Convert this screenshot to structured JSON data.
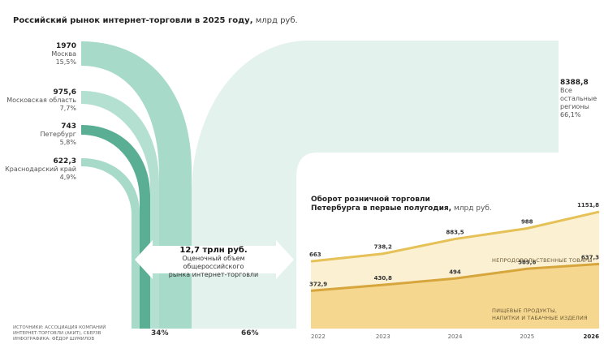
{
  "header": {
    "title": "Российский рынок интернет-торговли в 2025 году,",
    "unit": "млрд руб."
  },
  "regions": [
    {
      "value": "1970",
      "name": "Москва",
      "share": "15,5%"
    },
    {
      "value": "975,6",
      "name": "Московская область",
      "share": "7,7%"
    },
    {
      "value": "743",
      "name": "Петербург",
      "share": "5,8%"
    },
    {
      "value": "622,3",
      "name": "Краснодарский край",
      "share": "4,9%"
    }
  ],
  "other_regions": {
    "value": "8388,8",
    "line1": "Все остальные",
    "line2": "регионы",
    "share": "66,1%"
  },
  "total": {
    "value": "12,7 трлн руб.",
    "line1": "Оценочный объем общероссийского",
    "line2": "рынка интернет-торговли"
  },
  "split": {
    "left": "34%",
    "right": "66%"
  },
  "source": {
    "line1": "ИСТОЧНИКИ: АССОЦИАЦИЯ КОМПАНИЙ",
    "line2": "ИНТЕРНЕТ-ТОРГОВЛИ (АКИТ), СБЕРЗВ",
    "line3": "ИНФОГРАФИКА: ФЁДОР ШУМИЛОВ"
  },
  "colors": {
    "flow_light": "#9fd6c4",
    "flow_dark": "#5aae94",
    "flow_pale": "#e3f2ed",
    "line_top": "#e5c157",
    "line_bottom": "#d6a63c",
    "area_top": "#fbf0d2",
    "area_bottom": "#f6d78f"
  },
  "chart_data": {
    "type": "area",
    "title": "Оборот розничной торговли Петербурга в первые полугодия,",
    "title_line1": "Оборот розничной торговли",
    "title_line2": "Петербурга в первые полугодия,",
    "unit": "млрд руб.",
    "x": [
      "2022",
      "2023",
      "2024",
      "2025",
      "2026"
    ],
    "series": [
      {
        "name_line1": "НЕПРОДОВОЛЬСТВЕННЫЕ ТОВАРЫ",
        "name_line2": "",
        "values": [
          663,
          738.2,
          883.5,
          988,
          1151.8
        ],
        "labels": [
          "663",
          "738,2",
          "883,5",
          "988",
          "1151,8"
        ]
      },
      {
        "name_line1": "ПИЩЕВЫЕ ПРОДУКТЫ,",
        "name_line2": "НАПИТКИ И ТАБАЧНЫЕ ИЗДЕЛИЯ",
        "values": [
          372.9,
          430.8,
          494,
          589.6,
          637.3
        ],
        "labels": [
          "372,9",
          "430,8",
          "494",
          "589,6",
          "637,3"
        ]
      }
    ],
    "ylim": [
      0,
      1400
    ]
  }
}
